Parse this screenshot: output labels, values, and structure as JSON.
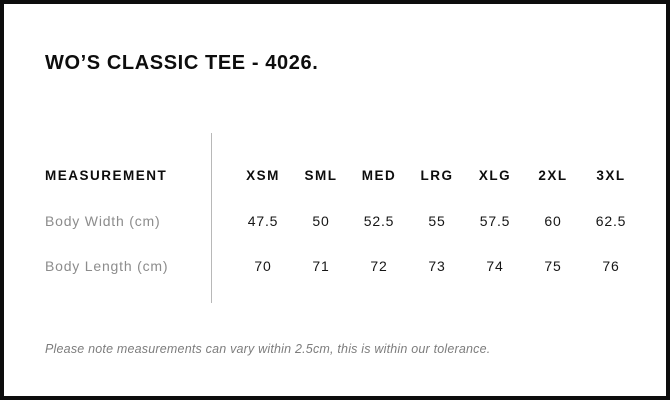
{
  "chart_data": {
    "type": "table",
    "title": "WO’S CLASSIC TEE - 4026.",
    "row_header_label": "MEASUREMENT",
    "categories": [
      "XSM",
      "SML",
      "MED",
      "LRG",
      "XLG",
      "2XL",
      "3XL"
    ],
    "series": [
      {
        "name": "Body Width (cm)",
        "values": [
          47.5,
          50,
          52.5,
          55,
          57.5,
          60,
          62.5
        ]
      },
      {
        "name": "Body Length (cm)",
        "values": [
          70,
          71,
          72,
          73,
          74,
          75,
          76
        ]
      }
    ],
    "footnote": "Please note measurements can vary within 2.5cm, this is within our tolerance.",
    "layout": {
      "divider": "vertical line between row labels and size columns",
      "grid": "off"
    }
  },
  "colors": {
    "frame_border": "#0d0d0d",
    "heading_text": "#0d0d0d",
    "value_text": "#161616",
    "muted_label_text": "#8c8c8c",
    "divider": "#b8b8b8",
    "note_text": "#7d7d7d",
    "background": "#ffffff"
  }
}
